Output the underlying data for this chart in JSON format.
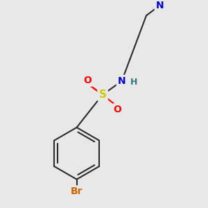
{
  "bg_color": "#e8e8e8",
  "bond_color": "#2a2a2a",
  "bond_width": 1.5,
  "atom_colors": {
    "N": "#0000cc",
    "S": "#cccc00",
    "O": "#ff0000",
    "Br": "#cc6600",
    "H_label": "#337777",
    "C": "#2a2a2a"
  },
  "font_size_atom": 10,
  "font_size_h": 9
}
